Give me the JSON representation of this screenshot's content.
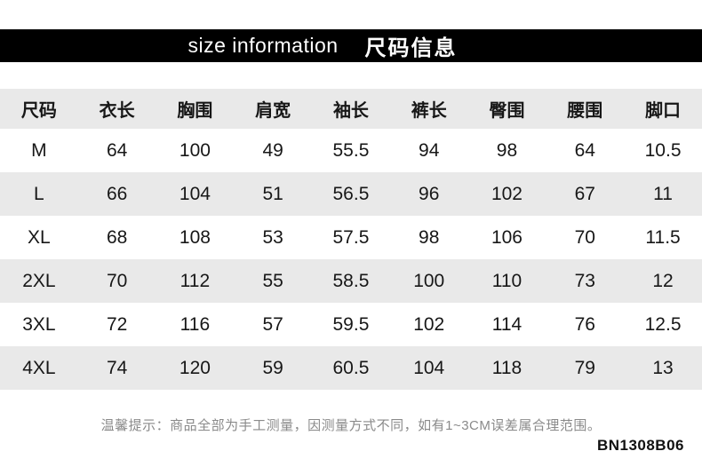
{
  "banner": {
    "title_en": "size information",
    "title_zh": "尺码信息",
    "bg_color": "#000000",
    "text_color": "#ffffff"
  },
  "table": {
    "columns": [
      "尺码",
      "衣长",
      "胸围",
      "肩宽",
      "袖长",
      "裤长",
      "臀围",
      "腰围",
      "脚口"
    ],
    "rows": [
      [
        "M",
        "64",
        "100",
        "49",
        "55.5",
        "94",
        "98",
        "64",
        "10.5"
      ],
      [
        "L",
        "66",
        "104",
        "51",
        "56.5",
        "96",
        "102",
        "67",
        "11"
      ],
      [
        "XL",
        "68",
        "108",
        "53",
        "57.5",
        "98",
        "106",
        "70",
        "11.5"
      ],
      [
        "2XL",
        "70",
        "112",
        "55",
        "58.5",
        "100",
        "110",
        "73",
        "12"
      ],
      [
        "3XL",
        "72",
        "116",
        "57",
        "59.5",
        "102",
        "114",
        "76",
        "12.5"
      ],
      [
        "4XL",
        "74",
        "120",
        "59",
        "60.5",
        "104",
        "118",
        "79",
        "13"
      ]
    ],
    "header_bg_color": "#e9e9e9",
    "zebra_color": "#e9e9e9",
    "text_color": "#171717"
  },
  "footer": {
    "note": "温馨提示：商品全部为手工测量，因测量方式不同，如有1~3CM误差属合理范围。",
    "note_color": "#8a8a8a",
    "code": "BN1308B06"
  }
}
